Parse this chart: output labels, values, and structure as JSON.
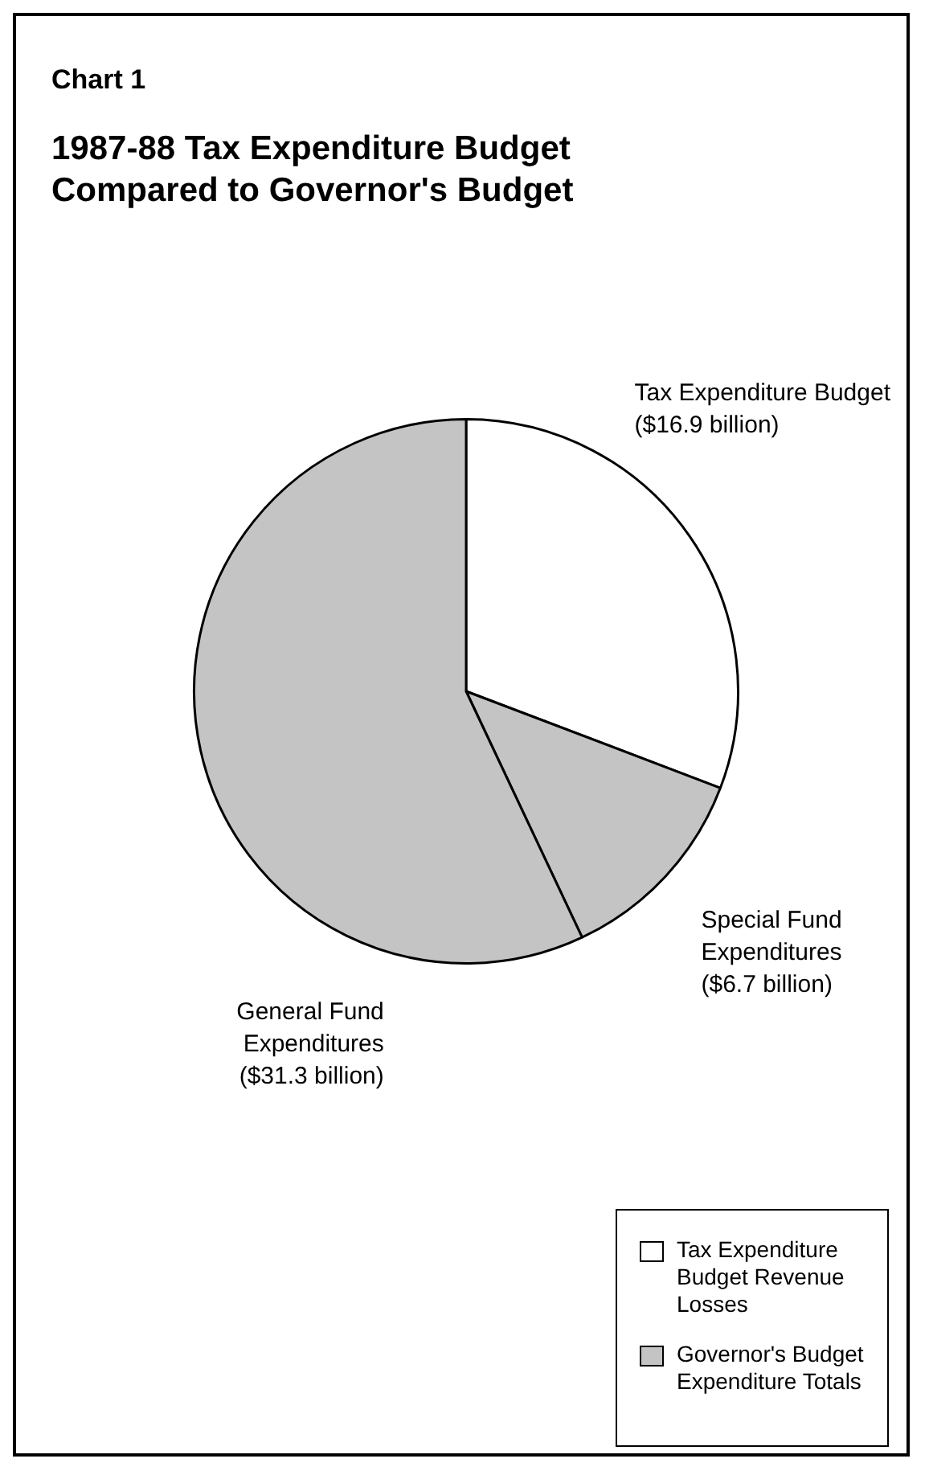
{
  "chart_data": {
    "type": "pie",
    "title": "1987-88 Tax Expenditure Budget Compared to Governor's Budget",
    "categories": [
      "Tax Expenditure Budget",
      "Special Fund Expenditures",
      "General Fund Expenditures"
    ],
    "values": [
      16.9,
      6.7,
      31.3
    ],
    "value_labels": [
      "($16.9 billion)",
      "($6.7 billion)",
      "($31.3 billion)"
    ],
    "colors": [
      "#ffffff",
      "#c4c4c4",
      "#c4c4c4"
    ],
    "annotations": [
      "Chart 1",
      "Tax Expenditure Budget Revenue Losses",
      "Governor's Budget Expenditure Totals"
    ]
  }
}
